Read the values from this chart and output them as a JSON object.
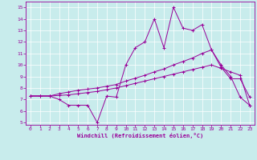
{
  "title": "",
  "xlabel": "Windchill (Refroidissement éolien,°C)",
  "ylabel": "",
  "background_color": "#c8ecec",
  "line_color": "#990099",
  "grid_color": "#ffffff",
  "xlim": [
    -0.5,
    23.5
  ],
  "ylim": [
    4.8,
    15.5
  ],
  "xticks": [
    0,
    1,
    2,
    3,
    4,
    5,
    6,
    7,
    8,
    9,
    10,
    11,
    12,
    13,
    14,
    15,
    16,
    17,
    18,
    19,
    20,
    21,
    22,
    23
  ],
  "yticks": [
    5,
    6,
    7,
    8,
    9,
    10,
    11,
    12,
    13,
    14,
    15
  ],
  "line1_x": [
    0,
    1,
    2,
    3,
    4,
    5,
    6,
    7,
    8,
    9,
    10,
    11,
    12,
    13,
    14,
    15,
    16,
    17,
    18,
    19,
    20,
    21,
    22,
    23
  ],
  "line1_y": [
    7.3,
    7.3,
    7.3,
    7.0,
    6.5,
    6.5,
    6.5,
    5.0,
    7.3,
    7.2,
    10.0,
    11.5,
    12.0,
    14.0,
    11.5,
    15.0,
    13.2,
    13.0,
    13.5,
    11.3,
    10.0,
    9.0,
    7.2,
    6.5
  ],
  "line2_x": [
    0,
    1,
    2,
    3,
    4,
    5,
    6,
    7,
    8,
    9,
    10,
    11,
    12,
    13,
    14,
    15,
    16,
    17,
    18,
    19,
    20,
    21,
    22,
    23
  ],
  "line2_y": [
    7.3,
    7.3,
    7.3,
    7.5,
    7.65,
    7.8,
    7.9,
    8.0,
    8.15,
    8.3,
    8.6,
    8.85,
    9.1,
    9.4,
    9.65,
    10.0,
    10.3,
    10.6,
    11.0,
    11.3,
    9.8,
    8.8,
    8.8,
    7.2
  ],
  "line3_x": [
    0,
    1,
    2,
    3,
    4,
    5,
    6,
    7,
    8,
    9,
    10,
    11,
    12,
    13,
    14,
    15,
    16,
    17,
    18,
    19,
    20,
    21,
    22,
    23
  ],
  "line3_y": [
    7.3,
    7.3,
    7.3,
    7.35,
    7.4,
    7.5,
    7.6,
    7.7,
    7.85,
    8.0,
    8.2,
    8.4,
    8.6,
    8.8,
    9.0,
    9.2,
    9.4,
    9.6,
    9.8,
    10.0,
    9.7,
    9.4,
    9.1,
    6.5
  ]
}
